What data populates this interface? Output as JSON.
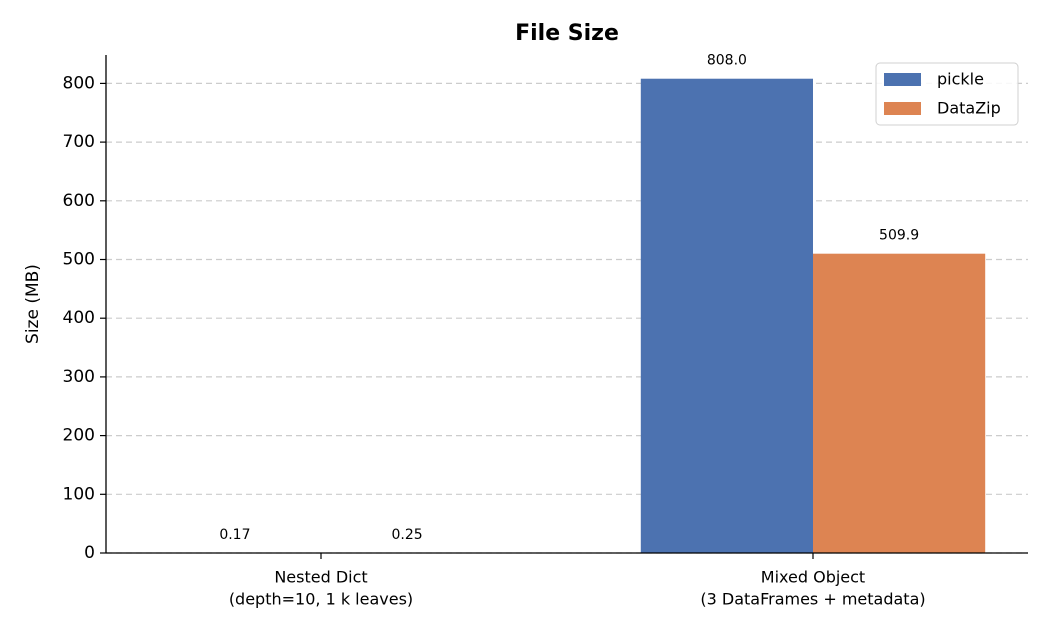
{
  "chart_data": {
    "type": "bar",
    "title": "File Size",
    "y_label": "Size (MB)",
    "categories": [
      [
        "Nested Dict",
        "(depth=10, 1 k leaves)"
      ],
      [
        "Mixed Object",
        "(3 DataFrames + metadata)"
      ]
    ],
    "series": [
      {
        "name": "pickle",
        "color": "#4c72b0",
        "values": [
          0.17,
          808.0
        ],
        "value_labels": [
          "0.17",
          "808.0"
        ]
      },
      {
        "name": "DataZip",
        "color": "#dd8452",
        "values": [
          0.25,
          509.9
        ],
        "value_labels": [
          "0.25",
          "509.9"
        ]
      }
    ],
    "ylim": [
      0,
      848.4
    ],
    "yticks": [
      0,
      100,
      200,
      300,
      400,
      500,
      600,
      700,
      800
    ],
    "grid": true,
    "legend": "upper right"
  }
}
